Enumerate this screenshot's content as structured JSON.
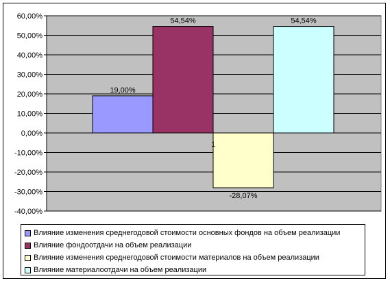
{
  "chart_data": {
    "type": "bar",
    "categories": [
      "1"
    ],
    "series": [
      {
        "name": "Влияние изменения среднегодовой стоимости основных фондов на объем реализации",
        "value": 19.0,
        "label": "19,00%",
        "color": "#9999ff"
      },
      {
        "name": "Влияние фондоотдачи на объем реализации",
        "value": 54.54,
        "label": "54,54%",
        "color": "#993366"
      },
      {
        "name": "Влияние изменения среднегодовой стоимости материалов на объем реализации",
        "value": -28.07,
        "label": "-28,07%",
        "color": "#ffffcc"
      },
      {
        "name": "Влияние материалоотдачи на объем реализации",
        "value": 54.54,
        "label": "54,54%",
        "color": "#ccffff"
      }
    ],
    "ylim": [
      -40,
      60
    ],
    "yticks": [
      60,
      50,
      40,
      30,
      20,
      10,
      0,
      -10,
      -20,
      -30,
      -40
    ],
    "ytick_labels": [
      "60,00%",
      "50,00%",
      "40,00%",
      "30,00%",
      "20,00%",
      "10,00%",
      "0,00%",
      "-10,00%",
      "-20,00%",
      "-30,00%",
      "-40,00%"
    ],
    "plot_background": "#c0c0c0",
    "grid": true,
    "legend_position": "bottom"
  }
}
